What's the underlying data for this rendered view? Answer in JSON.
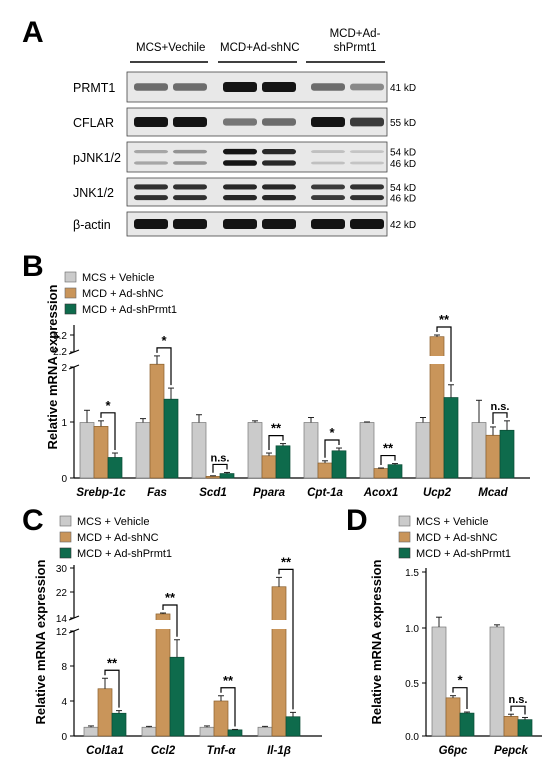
{
  "panels": {
    "A": {
      "letter": "A",
      "groups": [
        "MCS+Vechile",
        "MCD+Ad-shNC",
        "MCD+Ad-shPrmt1"
      ],
      "blots": [
        {
          "label": "PRMT1",
          "sizes": [
            "41 kD"
          ],
          "bands": [
            0.55,
            0.55,
            1.0,
            1.0,
            0.55,
            0.4
          ]
        },
        {
          "label": "CFLAR",
          "sizes": [
            "55 kD"
          ],
          "bands": [
            1.0,
            1.0,
            0.5,
            0.55,
            1.0,
            0.8
          ]
        },
        {
          "label": "pJNK1/2",
          "sizes": [
            "54 kD",
            "46 kD"
          ],
          "bands": [
            0.25,
            0.35,
            1.0,
            0.9,
            0.12,
            0.1
          ]
        },
        {
          "label": "JNK1/2",
          "sizes": [
            "54 kD",
            "46 kD"
          ],
          "bands": [
            0.85,
            0.85,
            0.9,
            0.9,
            0.8,
            0.85
          ]
        },
        {
          "label": "β-actin",
          "sizes": [
            "42 kD"
          ],
          "bands": [
            1.0,
            1.0,
            1.0,
            1.0,
            1.0,
            1.0
          ]
        }
      ]
    },
    "B": {
      "letter": "B",
      "ylabel": "Relative mRNA expression",
      "legend": [
        "MCS + Vehicle",
        "MCD + Ad-shNC",
        "MCD + Ad-shPrmt1"
      ],
      "y_ticks": [
        "0",
        "1",
        "2",
        "2.2",
        "5.2"
      ]
    },
    "C": {
      "letter": "C",
      "ylabel": "Relative mRNA expression",
      "legend": [
        "MCS + Vehicle",
        "MCD + Ad-shNC",
        "MCD + Ad-shPrmt1"
      ],
      "y_ticks": [
        "0",
        "4",
        "8",
        "12",
        "14",
        "22",
        "30"
      ]
    },
    "D": {
      "letter": "D",
      "ylabel": "Relative mRNA expression",
      "legend": [
        "MCS + Vehicle",
        "MCD + Ad-shNC",
        "MCD + Ad-shPrmt1"
      ],
      "y_ticks": [
        "0.0",
        "0.5",
        "1.0",
        "1.5"
      ]
    }
  },
  "chart_data": [
    {
      "type": "bar",
      "panel": "B",
      "categories": [
        "Srebp-1c",
        "Fas",
        "Scd1",
        "Ppara",
        "Cpt-1a",
        "Acox1",
        "Ucp2",
        "Mcad"
      ],
      "series": [
        {
          "name": "MCS + Vehicle",
          "values": [
            1.0,
            1.0,
            1.0,
            1.0,
            1.0,
            1.0,
            1.0,
            1.0
          ],
          "errors": [
            0.22,
            0.07,
            0.14,
            0.03,
            0.09,
            0.01,
            0.09,
            0.4
          ]
        },
        {
          "name": "MCD + Ad-shNC",
          "values": [
            0.93,
            2.05,
            0.03,
            0.4,
            0.27,
            0.17,
            4.9,
            0.77
          ],
          "errors": [
            0.1,
            0.15,
            0.01,
            0.05,
            0.04,
            0.01,
            0.3,
            0.15
          ]
        },
        {
          "name": "MCD + Ad-shPrmt1",
          "values": [
            0.37,
            1.42,
            0.08,
            0.58,
            0.49,
            0.24,
            1.45,
            0.86
          ],
          "errors": [
            0.08,
            0.2,
            0.02,
            0.04,
            0.05,
            0.02,
            0.23,
            0.17
          ]
        }
      ],
      "significance": [
        "*",
        "*",
        "n.s.",
        "**",
        "*",
        "**",
        "**",
        "n.s."
      ],
      "ylabel": "Relative mRNA expression",
      "axis_breaks": [
        2.2
      ]
    },
    {
      "type": "bar",
      "panel": "C",
      "categories": [
        "Col1a1",
        "Ccl2",
        "Tnf-α",
        "Il-1β"
      ],
      "series": [
        {
          "name": "MCS + Vehicle",
          "values": [
            1.0,
            1.0,
            1.0,
            1.0
          ],
          "errors": [
            0.15,
            0.1,
            0.15,
            0.1
          ]
        },
        {
          "name": "MCD + Ad-shNC",
          "values": [
            5.4,
            15.3,
            4.0,
            24.0
          ],
          "errors": [
            1.2,
            0.3,
            0.6,
            3.0
          ]
        },
        {
          "name": "MCD + Ad-shPrmt1",
          "values": [
            2.6,
            9.0,
            0.7,
            2.2
          ],
          "errors": [
            0.3,
            2.0,
            0.05,
            0.5
          ]
        }
      ],
      "significance": [
        "**",
        "**",
        "**",
        "**"
      ],
      "ylabel": "Relative mRNA expression",
      "axis_breaks": [
        14
      ]
    },
    {
      "type": "bar",
      "panel": "D",
      "categories": [
        "G6pc",
        "Pepck"
      ],
      "series": [
        {
          "name": "MCS + Vehicle",
          "values": [
            1.0,
            1.0
          ],
          "errors": [
            0.09,
            0.02
          ]
        },
        {
          "name": "MCD + Ad-shNC",
          "values": [
            0.35,
            0.18
          ],
          "errors": [
            0.02,
            0.02
          ]
        },
        {
          "name": "MCD + Ad-shPrmt1",
          "values": [
            0.21,
            0.15
          ],
          "errors": [
            0.01,
            0.02
          ]
        }
      ],
      "significance": [
        "*",
        "n.s."
      ],
      "ylabel": "Relative mRNA expression",
      "ylim": [
        0,
        1.5
      ]
    }
  ],
  "colors": {
    "vehicle": "#cbcbcb",
    "shnc": "#c9955a",
    "shprmt1": "#0e6b4c"
  }
}
